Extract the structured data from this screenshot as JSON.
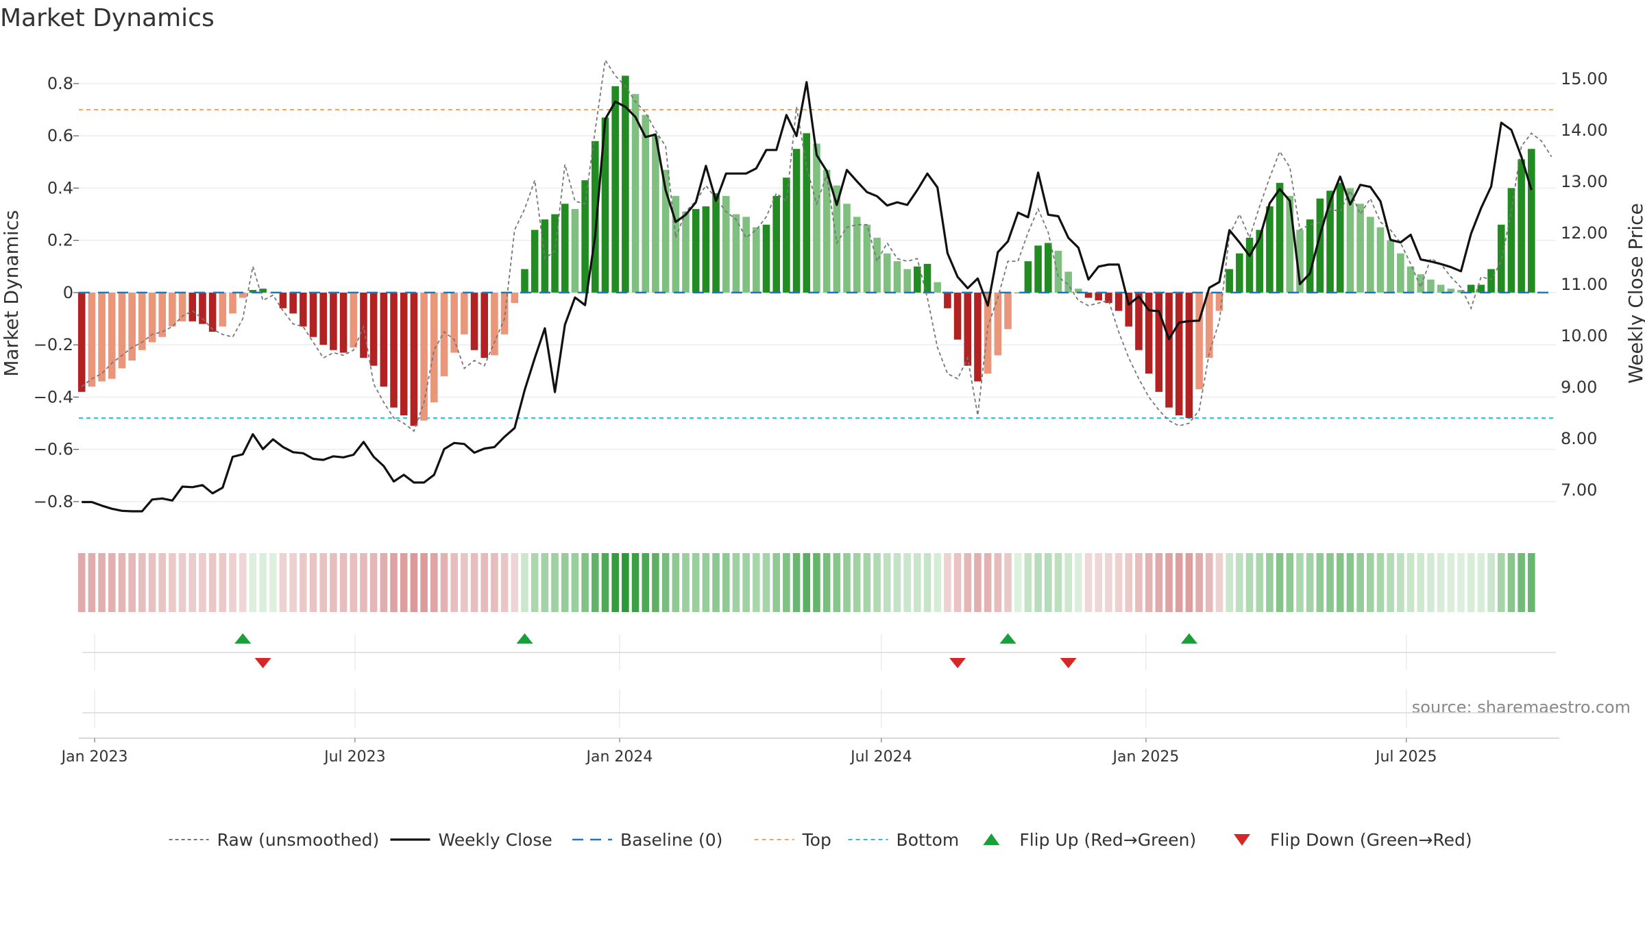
{
  "page": {
    "title": "Market Dynamics",
    "source": "source: sharemaestro.com"
  },
  "colors": {
    "dark_green": "#228b22",
    "light_green": "#7fbf7f",
    "dark_red": "#b22222",
    "light_red": "#e9967a",
    "top_line": "#f4a460",
    "bottom_line": "#1cc3df",
    "baseline": "#1f77b4",
    "close_line": "#111111",
    "raw_line": "#777777",
    "flip_up": "#1a9f3a",
    "flip_down": "#d62728"
  },
  "chart_data": {
    "type": "bar",
    "title": "Market Dynamics",
    "ylabel": "Market Dynamics",
    "y2label": "Weekly Close Price",
    "ylim": [
      -0.9,
      0.91
    ],
    "y2lim": [
      6.25,
      15.45
    ],
    "yticks": [
      -0.8,
      -0.6,
      -0.4,
      -0.2,
      0,
      0.2,
      0.4,
      0.6,
      0.8
    ],
    "ytick_labels": [
      "−0.8",
      "−0.6",
      "−0.4",
      "−0.2",
      "0",
      "0.2",
      "0.4",
      "0.6",
      "0.8"
    ],
    "y2ticks": [
      7,
      8,
      9,
      10,
      11,
      12,
      13,
      14,
      15
    ],
    "y2tick_labels": [
      "7.00",
      "8.00",
      "9.00",
      "10.00",
      "11.00",
      "12.00",
      "13.00",
      "14.00",
      "15.00"
    ],
    "x_start": "2022-12-23",
    "x_step_days": 7,
    "xlim": [
      "2022-12-21",
      "2025-10-13"
    ],
    "xtick_dates": [
      "2023-01-01",
      "2023-07-01",
      "2024-01-01",
      "2024-07-01",
      "2025-01-01",
      "2025-07-01"
    ],
    "xtick_labels": [
      "Jan 2023",
      "Jul 2023",
      "Jan 2024",
      "Jul 2024",
      "Jan 2025",
      "Jul 2025"
    ],
    "top_level": 0.7,
    "bottom_level": -0.48,
    "baseline_level": 0,
    "market_dynamics": [
      -0.38,
      -0.36,
      -0.34,
      -0.33,
      -0.29,
      -0.26,
      -0.22,
      -0.19,
      -0.17,
      -0.13,
      -0.11,
      -0.11,
      -0.12,
      -0.15,
      -0.13,
      -0.08,
      -0.02,
      0.01,
      0.015,
      0,
      -0.06,
      -0.08,
      -0.13,
      -0.17,
      -0.2,
      -0.22,
      -0.23,
      -0.21,
      -0.25,
      -0.28,
      -0.36,
      -0.44,
      -0.47,
      -0.51,
      -0.49,
      -0.42,
      -0.32,
      -0.23,
      -0.16,
      -0.22,
      -0.25,
      -0.24,
      -0.16,
      -0.04,
      0.09,
      0.24,
      0.28,
      0.3,
      0.34,
      0.32,
      0.43,
      0.58,
      0.67,
      0.79,
      0.83,
      0.76,
      0.68,
      0.6,
      0.47,
      0.37,
      0.31,
      0.32,
      0.33,
      0.38,
      0.37,
      0.3,
      0.29,
      0.25,
      0.26,
      0.37,
      0.44,
      0.55,
      0.61,
      0.57,
      0.47,
      0.41,
      0.34,
      0.29,
      0.26,
      0.21,
      0.15,
      0.12,
      0.09,
      0.1,
      0.11,
      0.04,
      -0.06,
      -0.18,
      -0.28,
      -0.34,
      -0.31,
      -0.24,
      -0.14,
      0,
      0.12,
      0.18,
      0.19,
      0.16,
      0.08,
      0.015,
      -0.02,
      -0.03,
      -0.04,
      -0.07,
      -0.13,
      -0.22,
      -0.31,
      -0.38,
      -0.44,
      -0.47,
      -0.48,
      -0.37,
      -0.25,
      -0.07,
      0.09,
      0.15,
      0.21,
      0.24,
      0.33,
      0.42,
      0.37,
      0.24,
      0.28,
      0.36,
      0.39,
      0.42,
      0.4,
      0.34,
      0.29,
      0.25,
      0.2,
      0.15,
      0.1,
      0.07,
      0.05,
      0.03,
      0.015,
      0.01,
      0.03,
      0.03,
      0.09,
      0.26,
      0.4,
      0.51,
      0.55
    ],
    "raw_unsmoothed": [
      -0.36,
      -0.33,
      -0.31,
      -0.27,
      -0.24,
      -0.21,
      -0.19,
      -0.16,
      -0.15,
      -0.13,
      -0.09,
      -0.07,
      -0.1,
      -0.14,
      -0.16,
      -0.17,
      -0.1,
      0.1,
      -0.03,
      -0.01,
      -0.07,
      -0.12,
      -0.13,
      -0.19,
      -0.25,
      -0.23,
      -0.24,
      -0.22,
      -0.13,
      -0.35,
      -0.42,
      -0.48,
      -0.5,
      -0.53,
      -0.42,
      -0.22,
      -0.15,
      -0.18,
      -0.29,
      -0.26,
      -0.28,
      -0.19,
      -0.1,
      0.24,
      0.32,
      0.43,
      0.13,
      0.16,
      0.49,
      0.35,
      0.34,
      0.62,
      0.89,
      0.83,
      0.79,
      0.73,
      0.69,
      0.62,
      0.56,
      0.21,
      0.31,
      0.35,
      0.41,
      0.36,
      0.31,
      0.28,
      0.21,
      0.24,
      0.29,
      0.38,
      0.35,
      0.71,
      0.48,
      0.34,
      0.45,
      0.19,
      0.25,
      0.26,
      0.26,
      0.12,
      0.19,
      0.13,
      0.12,
      0.13,
      -0.02,
      -0.21,
      -0.31,
      -0.33,
      -0.25,
      -0.47,
      -0.13,
      -0.02,
      0.12,
      0.12,
      0.23,
      0.32,
      0.23,
      0.06,
      0.03,
      -0.03,
      -0.05,
      -0.04,
      -0.03,
      -0.15,
      -0.25,
      -0.33,
      -0.4,
      -0.45,
      -0.49,
      -0.51,
      -0.5,
      -0.45,
      -0.23,
      -0.11,
      0.22,
      0.3,
      0.21,
      0.33,
      0.44,
      0.54,
      0.48,
      0.24,
      0.26,
      0.27,
      0.32,
      0.31,
      0.39,
      0.3,
      0.36,
      0.27,
      0.24,
      0.19,
      0.11,
      0.02,
      0.13,
      0.11,
      0.06,
      0.02,
      -0.06,
      0.06,
      0.05,
      0.12,
      0.31,
      0.56,
      0.61,
      0.58,
      0.52
    ],
    "weekly_close": [
      6.75,
      6.75,
      6.68,
      6.62,
      6.58,
      6.57,
      6.57,
      6.8,
      6.82,
      6.78,
      7.05,
      7.04,
      7.08,
      6.92,
      7.03,
      7.63,
      7.68,
      8.07,
      7.78,
      7.97,
      7.82,
      7.72,
      7.7,
      7.59,
      7.57,
      7.64,
      7.62,
      7.67,
      7.92,
      7.63,
      7.45,
      7.15,
      7.28,
      7.13,
      7.13,
      7.28,
      7.78,
      7.9,
      7.88,
      7.71,
      7.79,
      7.82,
      8.02,
      8.19,
      8.93,
      9.55,
      10.13,
      8.89,
      10.2,
      10.73,
      10.58,
      11.92,
      14.2,
      14.54,
      14.44,
      14.24,
      13.85,
      13.9,
      12.82,
      12.2,
      12.34,
      12.58,
      13.29,
      12.61,
      13.14,
      13.14,
      13.14,
      13.24,
      13.6,
      13.6,
      14.28,
      13.87,
      14.92,
      13.5,
      13.19,
      12.53,
      13.21,
      12.99,
      12.78,
      12.7,
      12.52,
      12.58,
      12.53,
      12.82,
      13.14,
      12.87,
      11.59,
      11.13,
      10.91,
      11.1,
      10.57,
      11.61,
      11.82,
      12.38,
      12.29,
      13.16,
      12.34,
      12.31,
      11.89,
      11.7,
      11.08,
      11.33,
      11.37,
      11.37,
      10.59,
      10.75,
      10.48,
      10.46,
      9.92,
      10.24,
      10.27,
      10.28,
      10.92,
      11.03,
      12.04,
      11.8,
      11.54,
      11.88,
      12.56,
      12.84,
      12.61,
      10.99,
      11.2,
      11.95,
      12.6,
      13.08,
      12.54,
      12.92,
      12.88,
      12.6,
      11.85,
      11.8,
      11.95,
      11.47,
      11.43,
      11.38,
      11.32,
      11.24,
      11.97,
      12.47,
      12.89,
      14.13,
      13.99,
      13.47,
      12.82
    ],
    "flips_up": [
      "2023-04-14",
      "2023-10-27",
      "2024-09-27",
      "2025-01-31"
    ],
    "flips_down": [
      "2023-04-28",
      "2024-08-23",
      "2024-11-08"
    ],
    "legend": {
      "position": "bottom-center",
      "entries": [
        {
          "label": "Raw (unsmoothed)",
          "style": "raw"
        },
        {
          "label": "Weekly Close",
          "style": "close"
        },
        {
          "label": "Baseline (0)",
          "style": "baseline"
        },
        {
          "label": "Top",
          "style": "top"
        },
        {
          "label": "Bottom",
          "style": "bottom"
        },
        {
          "label": "Flip Up (Red→Green)",
          "style": "up"
        },
        {
          "label": "Flip Down (Green→Red)",
          "style": "down"
        }
      ]
    },
    "grid": true
  }
}
